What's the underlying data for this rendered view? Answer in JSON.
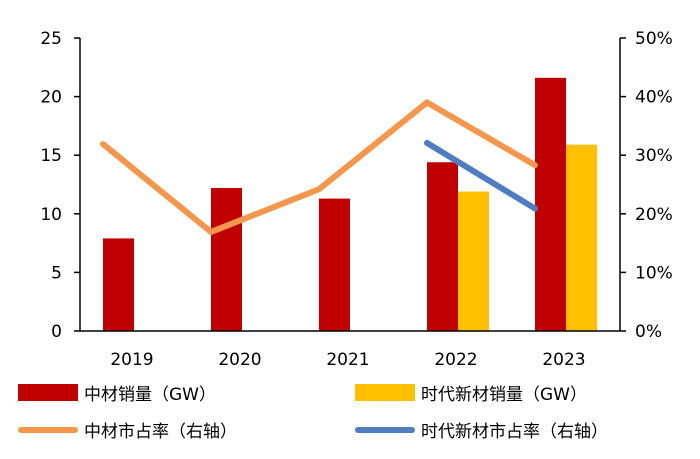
{
  "chart_data": {
    "type": "bar+line",
    "categories": [
      "2019",
      "2020",
      "2021",
      "2022",
      "2023"
    ],
    "left_axis": {
      "ylim": [
        0,
        25
      ],
      "ticks": [
        "0",
        "5",
        "10",
        "15",
        "20",
        "25"
      ]
    },
    "right_axis": {
      "ylim": [
        0,
        50
      ],
      "unit": "%",
      "ticks": [
        "0%",
        "10%",
        "20%",
        "30%",
        "40%",
        "50%"
      ]
    },
    "grid": false,
    "legend_position": "bottom",
    "bar_series": [
      {
        "name": "中材销量（GW）",
        "color": "#C00000",
        "values": [
          7.9,
          12.2,
          11.3,
          14.4,
          21.6
        ]
      },
      {
        "name": "时代新材销量（GW）",
        "color": "#FFC000",
        "values": [
          null,
          null,
          null,
          11.9,
          15.9
        ]
      }
    ],
    "line_series": [
      {
        "name": "中材市占率（右轴）",
        "color": "#F4974C",
        "values": [
          31.9,
          16.9,
          24.2,
          39.0,
          28.3
        ]
      },
      {
        "name": "时代新材市占率（右轴）",
        "color": "#4F7DBF",
        "values": [
          null,
          null,
          null,
          32.1,
          20.9
        ]
      }
    ]
  }
}
